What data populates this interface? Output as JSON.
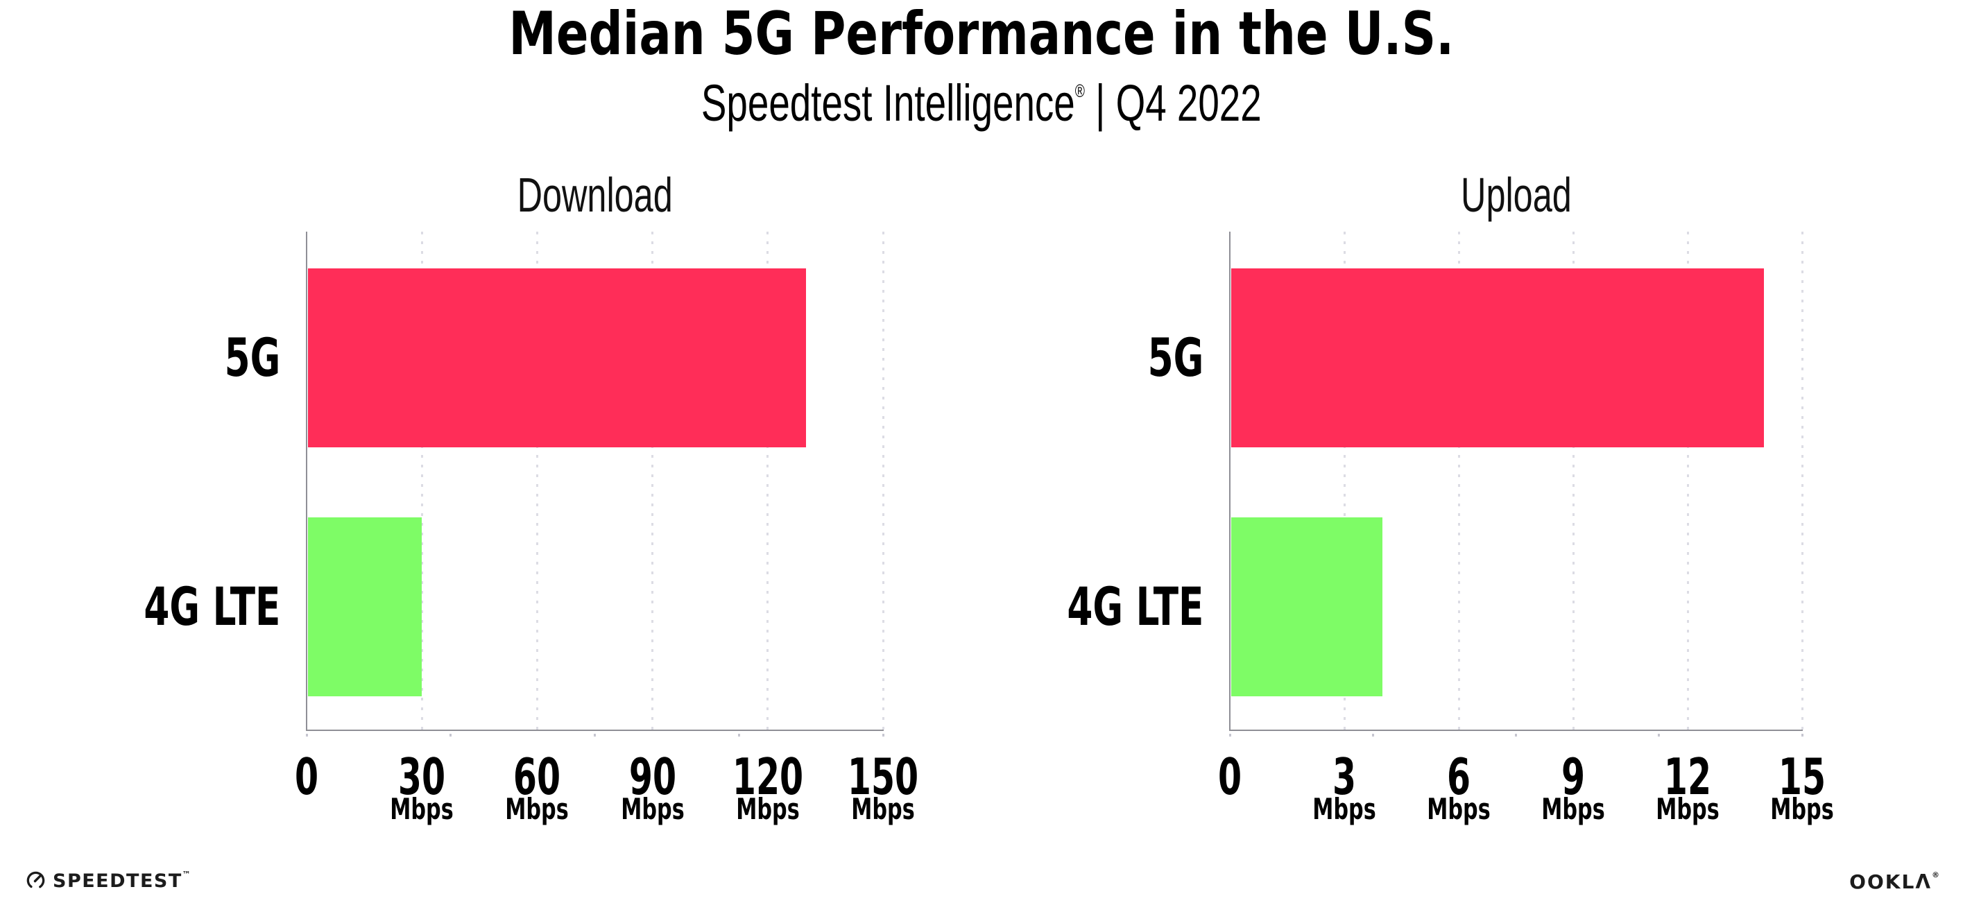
{
  "header": {
    "title": "Median 5G Performance in the U.S.",
    "subtitle": {
      "brand": "Speedtest Intelligence",
      "mark": "®",
      "rest": " | Q4 2022"
    }
  },
  "chart_data": [
    {
      "type": "bar",
      "orientation": "horizontal",
      "title": "Download",
      "categories": [
        "5G",
        "4G LTE"
      ],
      "values": [
        130,
        30
      ],
      "unit": "Mbps",
      "xlim": [
        0,
        150
      ],
      "xticks": [
        0,
        30,
        60,
        90,
        120,
        150
      ],
      "bar_colors": [
        "#FF2D58",
        "#7EFC66"
      ],
      "grid": "dotted-vertical",
      "legend": "none"
    },
    {
      "type": "bar",
      "orientation": "horizontal",
      "title": "Upload",
      "categories": [
        "5G",
        "4G LTE"
      ],
      "values": [
        14,
        4
      ],
      "unit": "Mbps",
      "xlim": [
        0,
        15
      ],
      "xticks": [
        0,
        3,
        6,
        9,
        12,
        15
      ],
      "bar_colors": [
        "#FF2D58",
        "#7EFC66"
      ],
      "grid": "dotted-vertical",
      "legend": "none"
    }
  ],
  "colors": {
    "bar_5g": "#FF2D58",
    "bar_4g_lte": "#7EFC66",
    "axis_line": "#8f8f96",
    "gridline": "#dcdce4",
    "axis_tick": "#c6c6d0",
    "text": "#000000"
  },
  "footer": {
    "speedtest_label": "SPEEDTEST",
    "speedtest_tm": "™",
    "speedtest_icon": "gauge-icon",
    "ookla_label": "OOKLΛ",
    "ookla_reg": "®"
  }
}
